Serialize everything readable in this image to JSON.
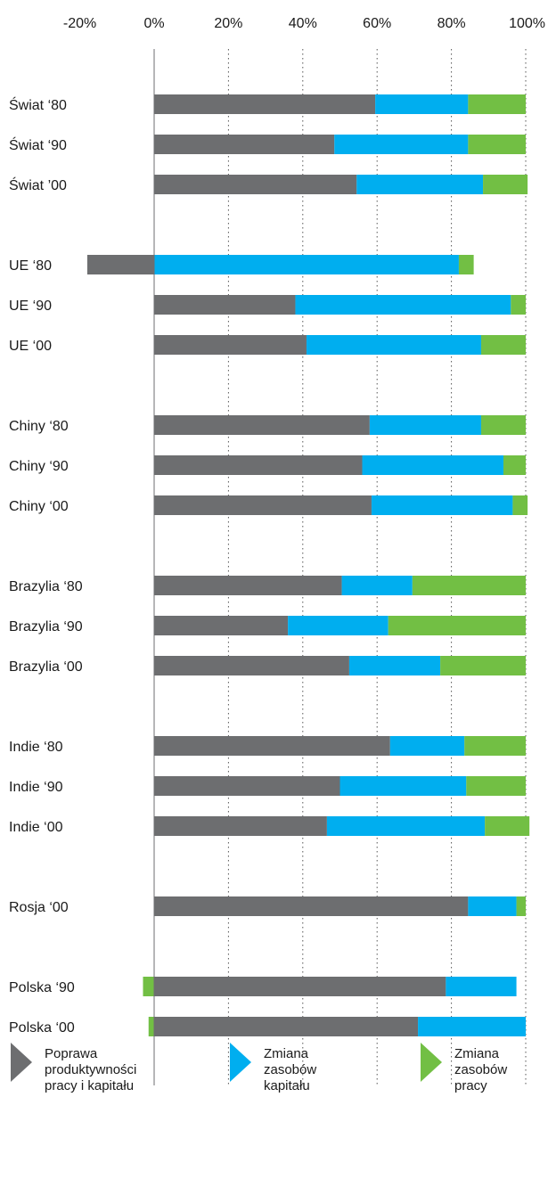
{
  "chart_data": {
    "type": "bar",
    "orientation": "horizontal",
    "stacked": true,
    "xlim": [
      -20,
      100
    ],
    "x_ticks": [
      "-20%",
      "0%",
      "20%",
      "40%",
      "60%",
      "80%",
      "100%"
    ],
    "x_tick_values": [
      -20,
      0,
      20,
      40,
      60,
      80,
      100
    ],
    "grid": "vertical dotted",
    "legend_position": "bottom",
    "categories": [
      "Świat ‘80",
      "Świat ‘90",
      "Świat ’00",
      "UE ‘80",
      "UE ‘90",
      "UE ‘00",
      "Chiny ‘80",
      "Chiny ‘90",
      "Chiny ‘00",
      "Brazylia ‘80",
      "Brazylia ‘90",
      "Brazylia ‘00",
      "Indie ‘80",
      "Indie ‘90",
      "Indie ‘00",
      "Rosja ‘00",
      "Polska ‘90",
      "Polska ‘00"
    ],
    "groups": [
      3,
      3,
      3,
      3,
      3,
      1,
      2
    ],
    "series": [
      {
        "name": "Poprawa produktywności pracy i kapitału",
        "color": "#6d6e70",
        "values": [
          59.5,
          48.5,
          54.5,
          -18,
          38,
          41,
          58,
          56,
          58.5,
          50.5,
          36,
          52.5,
          63.5,
          50,
          46.5,
          84.5,
          78.5,
          71
        ]
      },
      {
        "name": "Zmiana zasobów kapitału",
        "color": "#00aeef",
        "values": [
          25,
          36,
          34,
          82,
          58,
          47,
          30,
          38,
          38,
          19,
          27,
          24.5,
          20,
          34,
          42.5,
          13,
          19,
          29
        ]
      },
      {
        "name": "Zmiana zasobów pracy",
        "color": "#72bf44",
        "values": [
          15.5,
          15.5,
          12,
          4,
          4,
          12,
          12,
          6,
          4,
          30.5,
          37,
          23,
          16.5,
          16,
          12,
          2.5,
          -3,
          -1.5
        ]
      }
    ]
  },
  "legend": [
    {
      "label": "Poprawa produktywności pracy i kapitału",
      "lines": [
        "Poprawa",
        "produktywności",
        "pracy i kapitału"
      ],
      "color": "#6d6e70",
      "icon": "triangle-right-icon"
    },
    {
      "label": "Zmiana zasobów kapitału",
      "lines": [
        "Zmiana",
        "zasobów",
        "kapitału"
      ],
      "color": "#00aeef",
      "icon": "triangle-right-icon"
    },
    {
      "label": "Zmiana zasobów pracy",
      "lines": [
        "Zmiana",
        "zasobów",
        "pracy"
      ],
      "color": "#72bf44",
      "icon": "triangle-right-icon"
    }
  ]
}
